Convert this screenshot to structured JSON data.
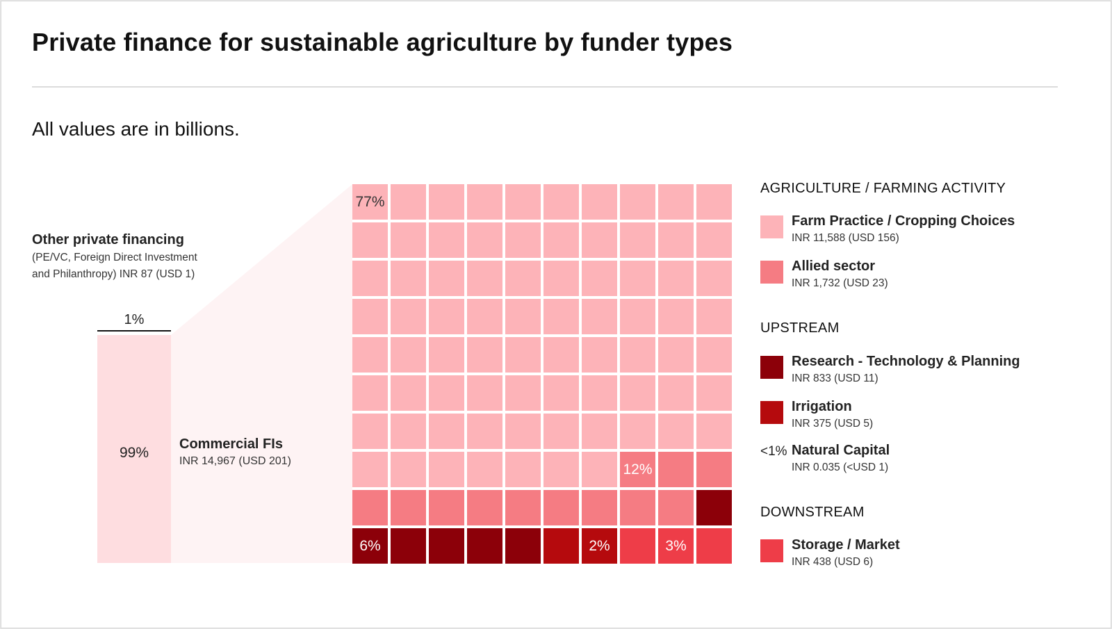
{
  "title": "Private finance for sustainable agriculture by funder types",
  "subtitle": "All values are in billions.",
  "other_private": {
    "label": "Other private financing",
    "description_line1": "(PE/VC, Foreign Direct Investment",
    "description_line2": "and Philanthropy) INR 87 (USD 1)",
    "share": "1%"
  },
  "commercial": {
    "label": "Commercial FIs",
    "value": "INR 14,967 (USD 201)",
    "share": "99%"
  },
  "chart_data": {
    "type": "waffle",
    "title": "Private finance for sustainable agriculture by funder types",
    "unit": "INR billions",
    "grid": {
      "rows": 10,
      "cols": 10,
      "total_cells": 100
    },
    "stacked_share": [
      {
        "name": "Commercial FIs",
        "percent": 99,
        "value": 14967,
        "value_usd": 201
      },
      {
        "name": "Other private financing",
        "percent": 1,
        "value": 87,
        "value_usd": 1
      }
    ],
    "series": [
      {
        "name": "Farm Practice / Cropping Choices",
        "group": "AGRICULTURE / FARMING ACTIVITY",
        "percent": 77,
        "cells": 77,
        "value": 11588,
        "value_usd": 156,
        "color": "#fdb3b8"
      },
      {
        "name": "Allied sector",
        "group": "AGRICULTURE / FARMING ACTIVITY",
        "percent": 12,
        "cells": 12,
        "value": 1732,
        "value_usd": 23,
        "color": "#f57c83"
      },
      {
        "name": "Research - Technology & Planning",
        "group": "UPSTREAM",
        "percent": 6,
        "cells": 6,
        "value": 833,
        "value_usd": 11,
        "color": "#8c0009"
      },
      {
        "name": "Irrigation",
        "group": "UPSTREAM",
        "percent": 2,
        "cells": 2,
        "value": 375,
        "value_usd": 5,
        "color": "#b50a0d"
      },
      {
        "name": "Natural Capital",
        "group": "UPSTREAM",
        "percent": 0,
        "cells": 0,
        "value": 0.035,
        "value_usd": 0,
        "color": "#b50a0d"
      },
      {
        "name": "Storage / Market",
        "group": "DOWNSTREAM",
        "percent": 3,
        "cells": 3,
        "value": 438,
        "value_usd": 6,
        "color": "#ee3d48"
      }
    ],
    "cell_labels": [
      {
        "text": "77%",
        "series": "Farm Practice / Cropping Choices",
        "cell": 0,
        "color": "#333333"
      },
      {
        "text": "12%",
        "series": "Allied sector",
        "cell": 77,
        "color": "#ffffff"
      },
      {
        "text": "6%",
        "series": "Research - Technology & Planning",
        "cell": 90,
        "color": "#ffffff"
      },
      {
        "text": "2%",
        "series": "Irrigation",
        "cell": 96,
        "color": "#ffffff"
      },
      {
        "text": "3%",
        "series": "Storage / Market",
        "cell": 98,
        "color": "#ffffff"
      }
    ],
    "fill_order": [
      "Farm Practice / Cropping Choices",
      "Allied sector",
      "Research - Technology & Planning",
      "Irrigation",
      "Storage / Market"
    ],
    "bottom_row_order": [
      "Research - Technology & Planning",
      "Research - Technology & Planning",
      "Research - Technology & Planning",
      "Research - Technology & Planning",
      "Research - Technology & Planning",
      "Irrigation",
      "Irrigation",
      "Storage / Market",
      "Storage / Market",
      "Storage / Market"
    ]
  },
  "legend": {
    "sections": [
      {
        "heading": "AGRICULTURE / FARMING ACTIVITY",
        "items": [
          {
            "label": "Farm Practice / Cropping Choices",
            "value": "INR 11,588 (USD 156)",
            "color": "#fdb3b8"
          },
          {
            "label": "Allied sector",
            "value": "INR 1,732 (USD 23)",
            "color": "#f57c83"
          }
        ]
      },
      {
        "heading": "UPSTREAM",
        "items": [
          {
            "label": "Research - Technology & Planning",
            "value": "INR 833 (USD 11)",
            "color": "#8c0009"
          },
          {
            "label": "Irrigation",
            "value": "INR 375 (USD 5)",
            "color": "#b50a0d"
          },
          {
            "label": "Natural Capital",
            "value": "INR 0.035 (<USD 1)",
            "prefix": "<1%"
          }
        ]
      },
      {
        "heading": "DOWNSTREAM",
        "items": [
          {
            "label": "Storage / Market",
            "value": "INR 438 (USD 6)",
            "color": "#ee3d48"
          }
        ]
      }
    ]
  }
}
